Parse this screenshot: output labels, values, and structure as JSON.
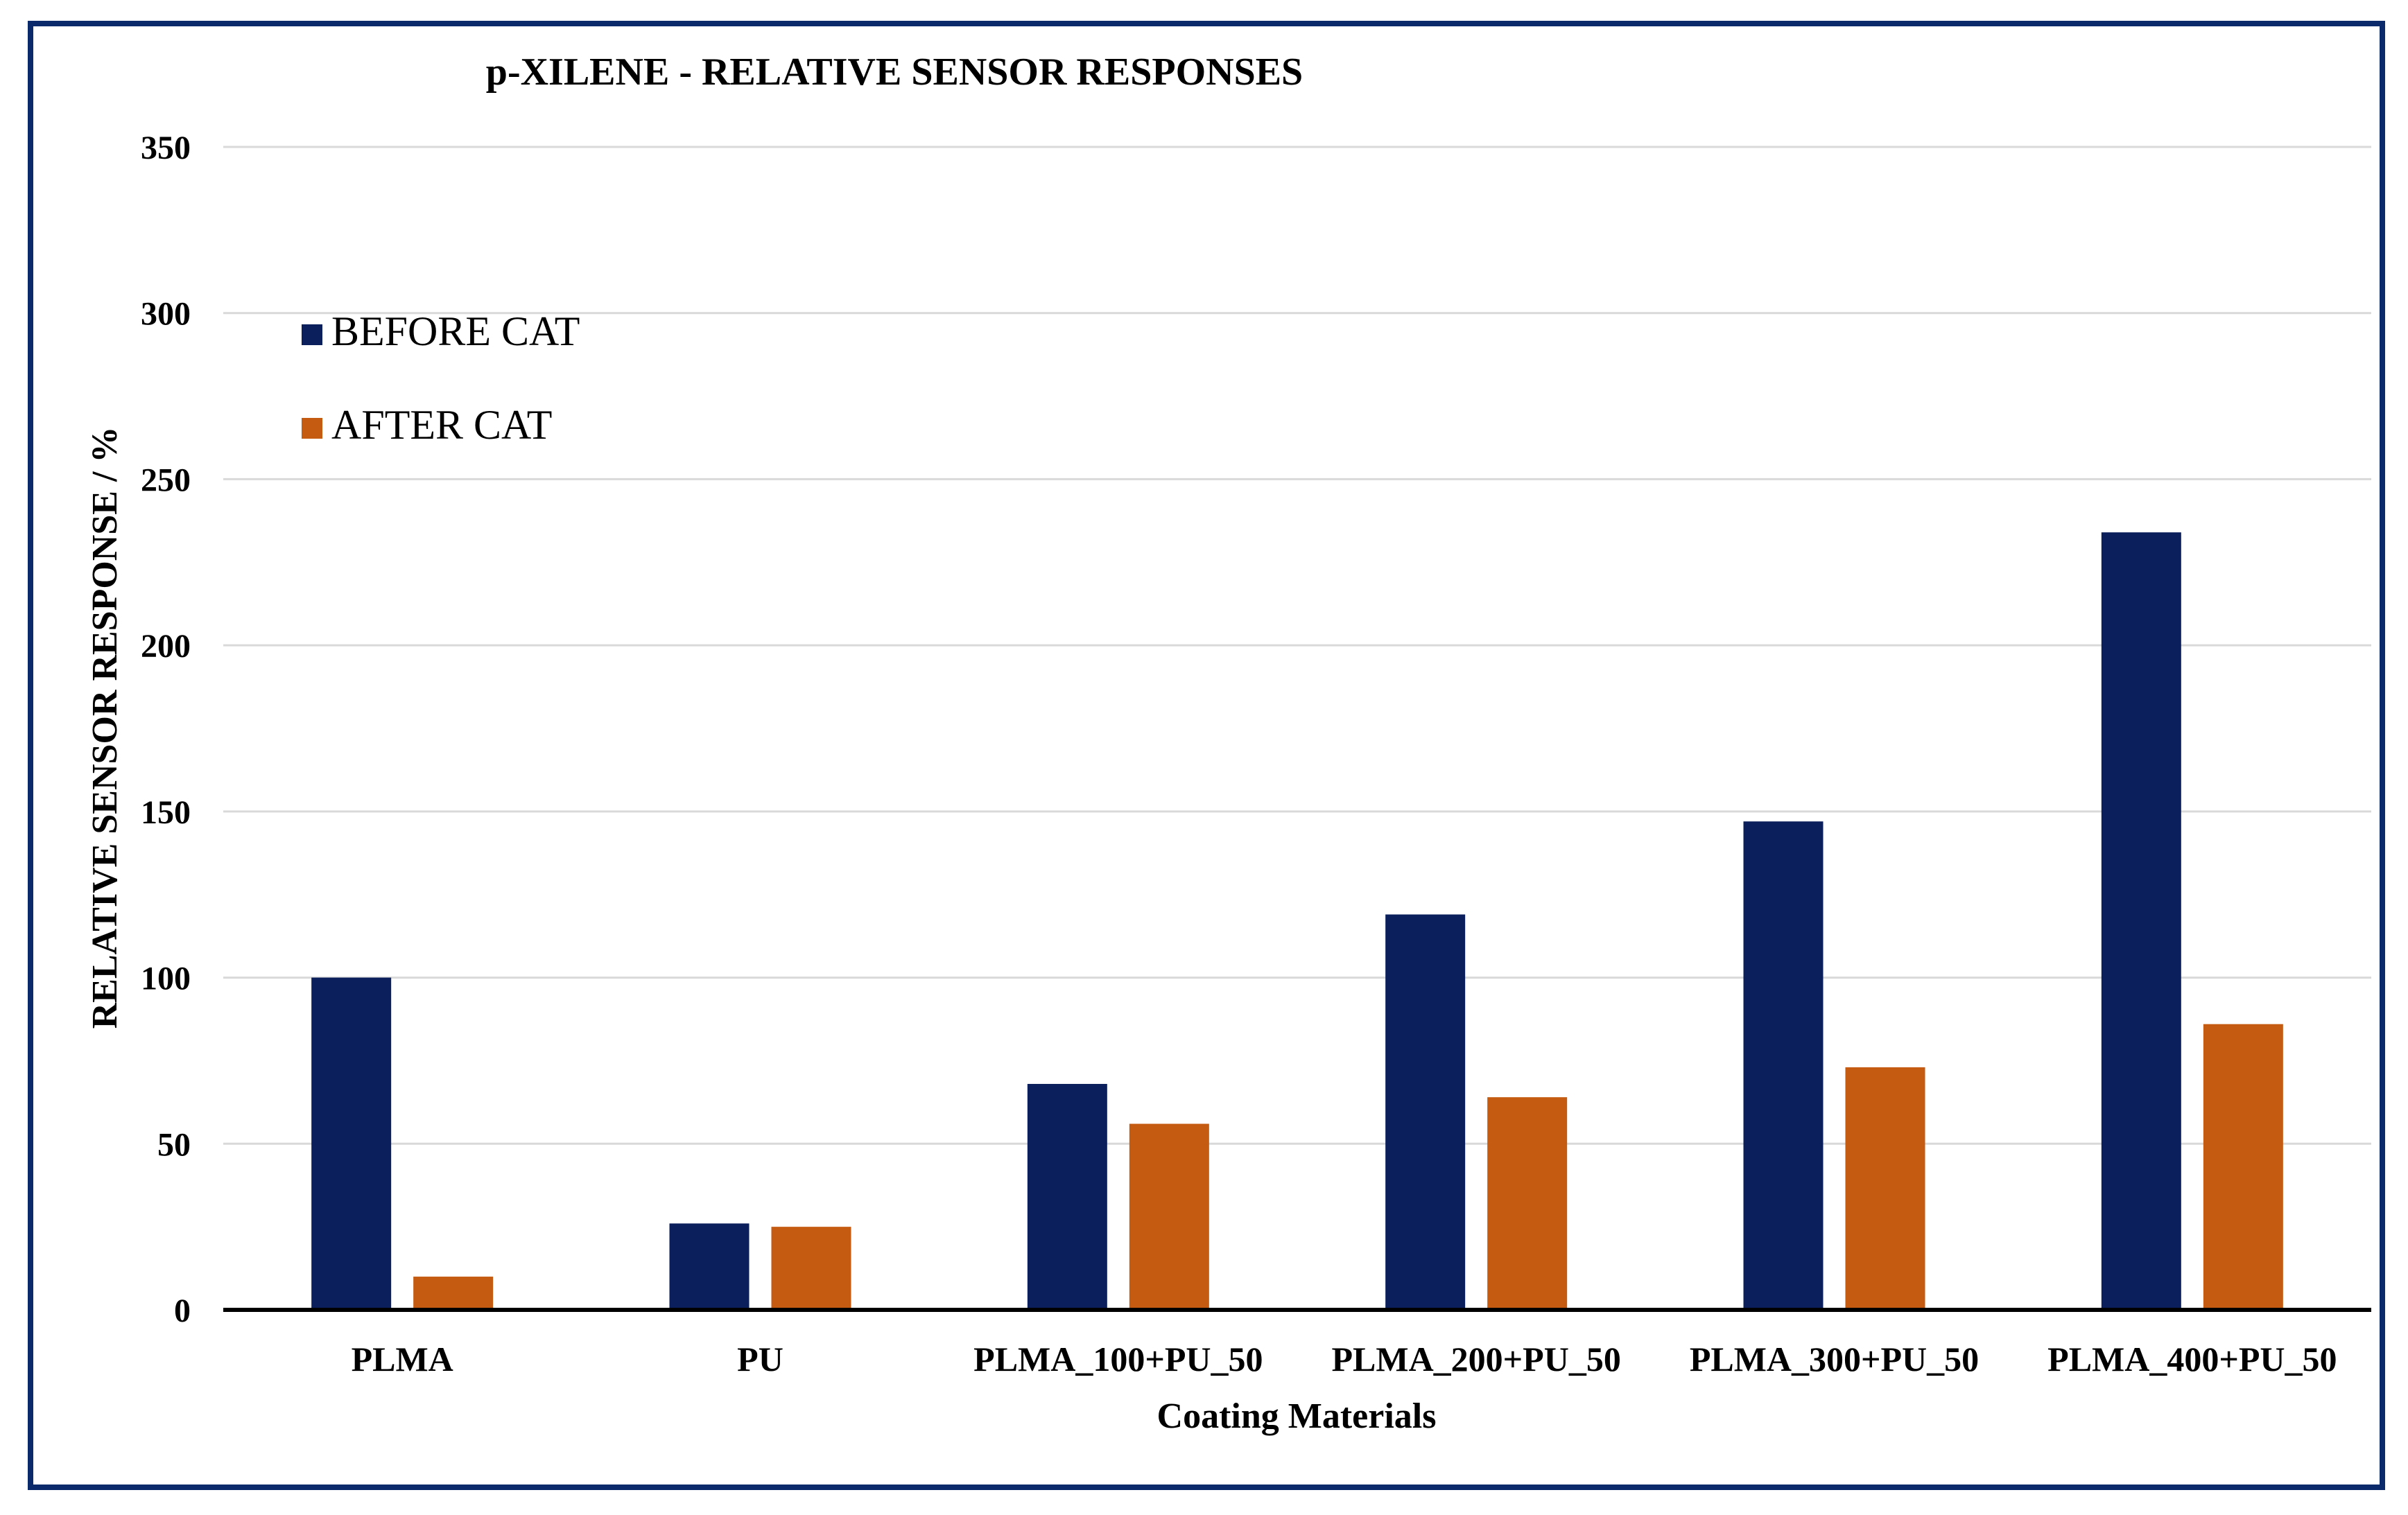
{
  "chart_data": {
    "type": "bar",
    "title": "p-XILENE  -  RELATIVE  SENSOR  RESPONSES",
    "xlabel": "Coating Materials",
    "ylabel": "RELATIVE SENSOR RESPONSE / %",
    "ylim": [
      0,
      350
    ],
    "yticks": [
      0,
      50,
      100,
      150,
      200,
      250,
      300,
      350
    ],
    "grid": true,
    "legend_position": "top-left",
    "categories": [
      "PLMA",
      "PU",
      "PLMA_100+PU_50",
      "PLMA_200+PU_50",
      "PLMA_300+PU_50",
      "PLMA_400+PU_50"
    ],
    "series": [
      {
        "name": "BEFORE CAT",
        "color": "#0b1f5c",
        "values": [
          100,
          26,
          68,
          119,
          147,
          234
        ]
      },
      {
        "name": "AFTER CAT",
        "color": "#c55a11",
        "values": [
          10,
          25,
          56,
          64,
          73,
          86
        ]
      }
    ]
  }
}
